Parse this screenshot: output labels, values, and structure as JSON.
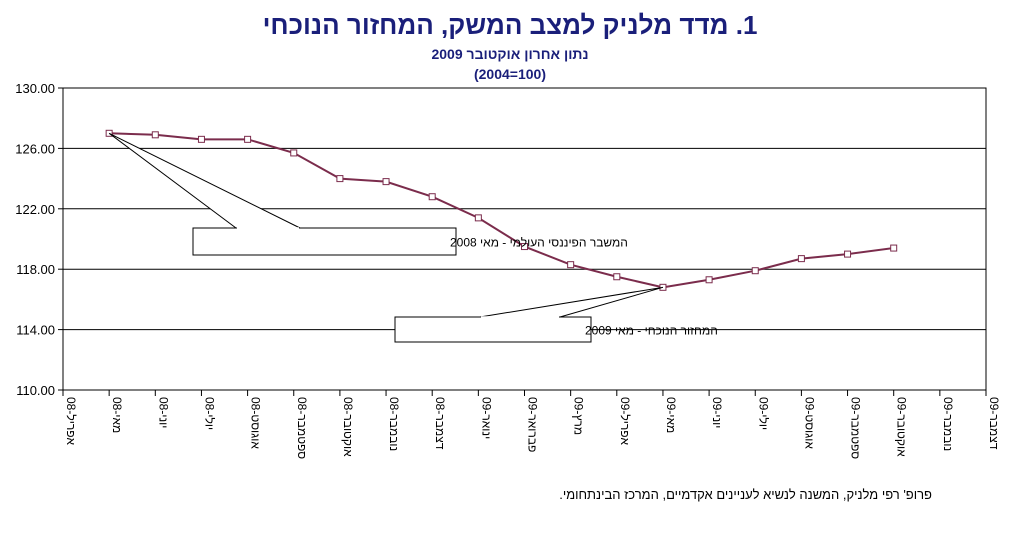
{
  "header": {
    "title_number": "1.",
    "title_text": "מדד מלניק למצב המשק, המחזור הנוכחי",
    "subtitle_line1": "נתון אחרון אוקטובר 2009",
    "subtitle_line2": "(2004=100)"
  },
  "footer": {
    "credit": "פרופ' רפי מלניק, המשנה לנשיא לעניינים אקדמיים, המרכז הבינתחומי."
  },
  "colors": {
    "line": "#7b2c4c",
    "grid": "#000000",
    "text": "#1a1f7a"
  },
  "chart_data": {
    "type": "line",
    "title": "מדד מלניק למצב המשק, המחזור הנוכחי",
    "subtitle": "נתון אחרון אוקטובר 2009 (2004=100)",
    "xlabel": "",
    "ylabel": "",
    "ylim": [
      110,
      130
    ],
    "yticks": [
      "110.00",
      "114.00",
      "118.00",
      "122.00",
      "126.00",
      "130.00"
    ],
    "ytick_values": [
      110,
      114,
      118,
      122,
      126,
      130
    ],
    "grid": true,
    "categories": [
      "אפריל-08",
      "מאי-08",
      "יוני-08",
      "יולי-08",
      "אוגוסט-08",
      "ספטמבר-08",
      "אוקטובר-08",
      "נובמבר-08",
      "דצמבר-08",
      "ינואר-09",
      "פברואר-09",
      "מרץ-09",
      "אפריל-09",
      "מאי-09",
      "יוני-09",
      "יולי-09",
      "אוגוסט-09",
      "ספטמבר-09",
      "אוקטובר-09",
      "נובמבר-09",
      "דצמבר-09"
    ],
    "series": [
      {
        "name": "מדד מלניק",
        "values": [
          null,
          127.0,
          126.9,
          126.6,
          126.6,
          125.7,
          124.0,
          123.8,
          122.8,
          121.4,
          119.5,
          118.3,
          117.5,
          116.8,
          117.3,
          117.9,
          118.7,
          119.0,
          119.4,
          null,
          null
        ]
      }
    ],
    "annotations": [
      {
        "text": "המשבר הפיננסי העולמי  - מאי 2008",
        "category": "מאי-08"
      },
      {
        "text": "המחזור הנוכחי - מאי 2009",
        "category": "מאי-09"
      }
    ]
  }
}
